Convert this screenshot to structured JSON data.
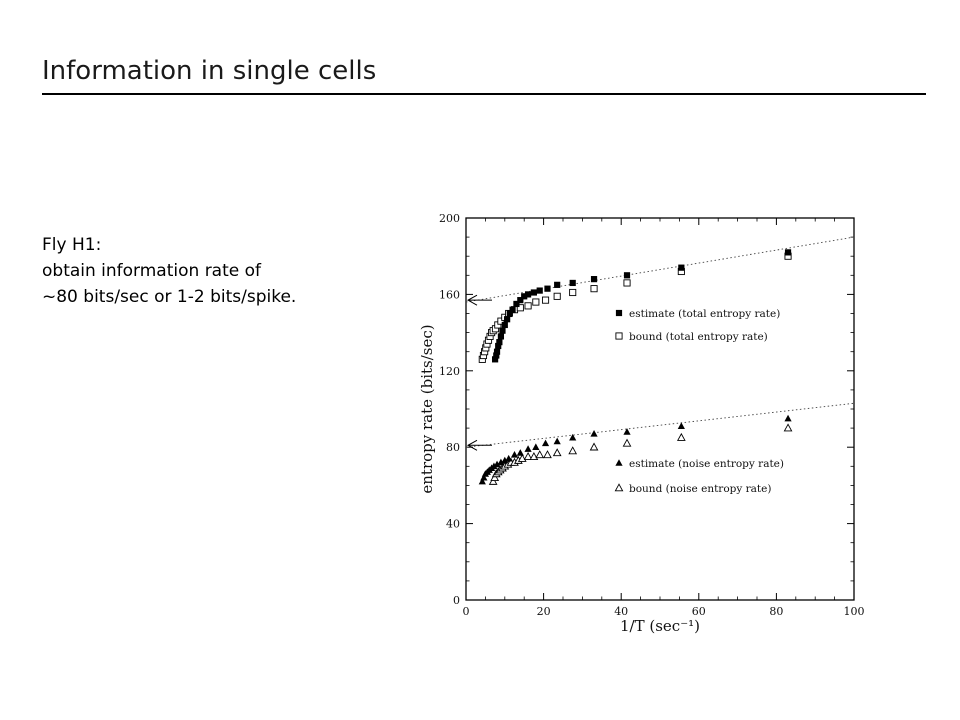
{
  "slide": {
    "title": "Information in single cells",
    "body_lines": [
      "Fly H1:",
      "obtain information rate of",
      "~80 bits/sec or 1-2 bits/spike."
    ]
  },
  "chart_data": {
    "type": "scatter",
    "xlabel": "1/T (sec⁻¹)",
    "ylabel": "entropy rate (bits/sec)",
    "xlim": [
      0,
      100
    ],
    "ylim": [
      0,
      200
    ],
    "xticks": [
      0,
      20,
      40,
      60,
      80,
      100
    ],
    "yticks": [
      0,
      40,
      80,
      120,
      160,
      200
    ],
    "grid": false,
    "legend_position": "inside-right",
    "series": [
      {
        "name": "estimate (total entropy rate)",
        "marker": "filled-square",
        "x": [
          7.5,
          7.8,
          8.0,
          8.3,
          8.6,
          9.0,
          9.4,
          10.0,
          10.6,
          11.3,
          12.0,
          13.0,
          14.0,
          15.0,
          16.0,
          17.5,
          19.0,
          21.0,
          23.5,
          27.5,
          33.0,
          41.5,
          55.5,
          83.0
        ],
        "y": [
          126,
          128,
          130,
          133,
          135,
          138,
          141,
          144,
          147,
          150,
          152,
          155,
          157,
          159,
          160,
          161,
          162,
          163,
          165,
          166,
          168,
          170,
          174,
          182
        ]
      },
      {
        "name": "bound (total entropy rate)",
        "marker": "open-square",
        "x": [
          4.2,
          4.5,
          4.8,
          5.1,
          5.4,
          5.8,
          6.2,
          6.6,
          7.0,
          7.6,
          8.2,
          9.0,
          10.0,
          11.0,
          12.5,
          14.0,
          16.0,
          18.0,
          20.5,
          23.5,
          27.5,
          33.0,
          41.5,
          55.5,
          83.0
        ],
        "y": [
          126,
          128,
          130,
          132,
          134,
          136,
          138,
          140,
          141,
          142,
          144,
          146,
          148,
          150,
          152,
          153,
          154,
          156,
          157,
          159,
          161,
          163,
          166,
          172,
          180
        ]
      },
      {
        "name": "estimate (noise entropy rate)",
        "marker": "filled-triangle",
        "x": [
          4.2,
          4.6,
          5.0,
          5.5,
          6.0,
          6.6,
          7.2,
          8.0,
          9.0,
          10.0,
          11.0,
          12.5,
          14.0,
          16.0,
          18.0,
          20.5,
          23.5,
          27.5,
          33.0,
          41.5,
          55.5,
          83.0
        ],
        "y": [
          62,
          64,
          66,
          67,
          68,
          69,
          70,
          71,
          72,
          73,
          74,
          76,
          77,
          79,
          80,
          82,
          83,
          85,
          87,
          88,
          91,
          95
        ]
      },
      {
        "name": "bound (noise entropy rate)",
        "marker": "open-triangle",
        "x": [
          7.0,
          7.4,
          7.8,
          8.3,
          8.8,
          9.4,
          10.0,
          10.8,
          11.6,
          12.5,
          13.5,
          14.5,
          16.0,
          17.5,
          19.0,
          21.0,
          23.5,
          27.5,
          33.0,
          41.5,
          55.5,
          83.0
        ],
        "y": [
          62,
          64,
          66,
          67,
          68,
          69,
          70,
          71,
          72,
          72,
          73,
          74,
          75,
          75,
          76,
          76,
          77,
          78,
          80,
          82,
          85,
          90
        ]
      }
    ],
    "fit_lines": [
      {
        "x": [
          0,
          100
        ],
        "y": [
          156,
          190
        ]
      },
      {
        "x": [
          0,
          100
        ],
        "y": [
          80,
          103
        ]
      }
    ],
    "arrows": [
      {
        "y": 157
      },
      {
        "y": 81
      }
    ]
  }
}
